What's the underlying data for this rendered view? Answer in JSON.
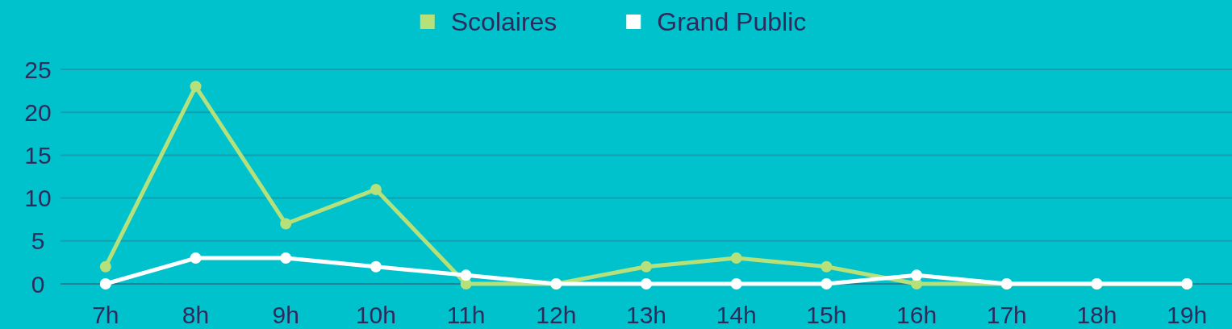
{
  "chart_data": {
    "type": "line",
    "categories": [
      "7h",
      "8h",
      "9h",
      "10h",
      "11h",
      "12h",
      "13h",
      "14h",
      "15h",
      "16h",
      "17h",
      "18h",
      "19h"
    ],
    "series": [
      {
        "name": "Scolaires",
        "color": "#b5e07a",
        "values": [
          2,
          23,
          7,
          11,
          0,
          0,
          2,
          3,
          2,
          0,
          0,
          0,
          0
        ]
      },
      {
        "name": "Grand Public",
        "color": "#ffffff",
        "values": [
          0,
          3,
          3,
          2,
          1,
          0,
          0,
          0,
          0,
          1,
          0,
          0,
          0
        ]
      }
    ],
    "ylim": [
      0,
      25
    ],
    "yticks": [
      0,
      5,
      10,
      15,
      20,
      25
    ],
    "grid": "y",
    "legend": "top",
    "marker": "circle",
    "line_style": "solid"
  }
}
